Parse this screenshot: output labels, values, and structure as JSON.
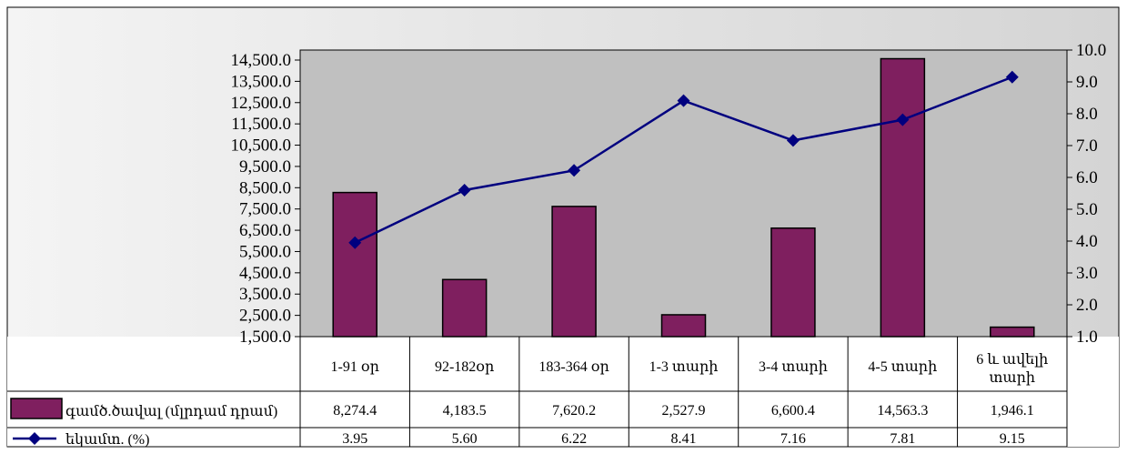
{
  "chart_data": {
    "type": "bar",
    "categories": [
      [
        "1-91 օր"
      ],
      [
        "92-182օր"
      ],
      [
        "183-364 օր"
      ],
      [
        "1-3 տարի"
      ],
      [
        "3-4 տարի"
      ],
      [
        "4-5 տարի"
      ],
      [
        "6 և ավելի",
        "տարի"
      ]
    ],
    "series": [
      {
        "name": "գամծ.ծավալ (մլրդամ դրամ)",
        "type": "bar",
        "axis": "left",
        "color": "#7f1f5f",
        "values": [
          8274.4,
          4183.5,
          7620.2,
          2527.9,
          6600.4,
          14563.3,
          1946.1
        ],
        "labels": [
          "8,274.4",
          "4,183.5",
          "7,620.2",
          "2,527.9",
          "6,600.4",
          "14,563.3",
          "1,946.1"
        ]
      },
      {
        "name": "եկամտ. (%)",
        "type": "line",
        "axis": "right",
        "color": "#00007f",
        "values": [
          3.95,
          5.6,
          6.22,
          8.41,
          7.16,
          7.81,
          9.15
        ],
        "labels": [
          "3.95",
          "5.60",
          "6.22",
          "8.41",
          "7.16",
          "7.81",
          "9.15"
        ]
      }
    ],
    "y_left": {
      "range": [
        1500,
        14500
      ],
      "ticks": [
        "14,500.0",
        "13,500.0",
        "12,500.0",
        "11,500.0",
        "10,500.0",
        "9,500.0",
        "8,500.0",
        "7,500.0",
        "6,500.0",
        "5,500.0",
        "4,500.0",
        "3,500.0",
        "2,500.0",
        "1,500.0"
      ]
    },
    "y_right": {
      "range": [
        1.0,
        10.0
      ],
      "ticks": [
        "10.0",
        "9.0",
        "8.0",
        "7.0",
        "6.0",
        "5.0",
        "4.0",
        "3.0",
        "2.0",
        "1.0"
      ]
    },
    "grid": false,
    "legend": "data-table"
  },
  "colors": {
    "plot_bg": "#c0c0c0",
    "bar": "#7f1f5f",
    "line": "#00007f",
    "gradient_from": "#f2f2f2",
    "gradient_to": "#d6d6d6"
  }
}
